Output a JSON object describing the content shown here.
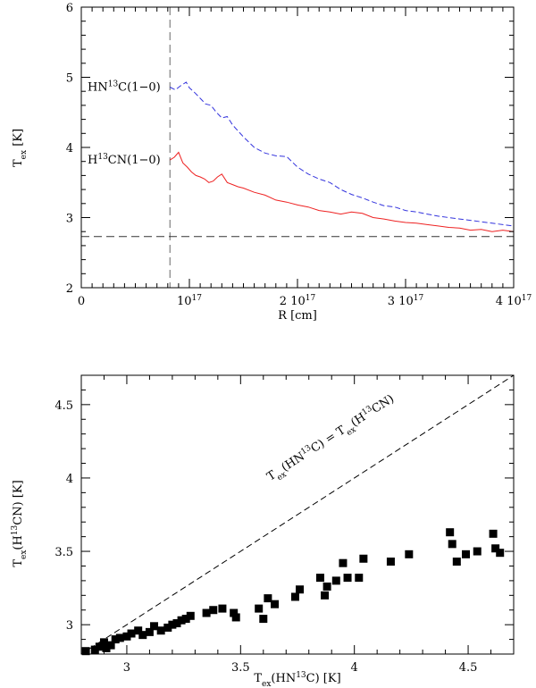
{
  "chart_data": [
    {
      "type": "line",
      "title": "",
      "xlabel": "R [cm]",
      "ylabel": "T_ex [K]",
      "xlim": [
        0,
        4e+17
      ],
      "ylim": [
        2,
        6
      ],
      "x_ticks": [
        {
          "value": 1e+17,
          "label": "10",
          "exp": "17"
        },
        {
          "value": 2e+17,
          "label": "2 10",
          "exp": "17"
        },
        {
          "value": 3e+17,
          "label": "3 10",
          "exp": "17"
        },
        {
          "value": 4e+17,
          "label": "4 10",
          "exp": "17"
        }
      ],
      "x_zero_label": "0",
      "y_ticks": [
        2,
        3,
        4,
        5,
        6
      ],
      "reference_lines": {
        "vertical_x": 8.2e+16,
        "horizontal_y": 2.73
      },
      "series": [
        {
          "name": "HN13C(1-0)",
          "label_parts": [
            "HN",
            "13",
            "C(1−0)"
          ],
          "color": "#3333dd",
          "style": "dashed",
          "x": [
            8.2e+16,
            8.7e+16,
            9.2e+16,
            9.7e+16,
            1e+17,
            1.05e+17,
            1.1e+17,
            1.15e+17,
            1.2e+17,
            1.25e+17,
            1.3e+17,
            1.35e+17,
            1.4e+17,
            1.5e+17,
            1.6e+17,
            1.7e+17,
            1.8e+17,
            1.9e+17,
            2e+17,
            2.1e+17,
            2.2e+17,
            2.3e+17,
            2.4e+17,
            2.5e+17,
            2.6e+17,
            2.7e+17,
            2.8e+17,
            2.9e+17,
            3e+17,
            3.1e+17,
            3.2e+17,
            3.3e+17,
            3.4e+17,
            3.5e+17,
            3.6e+17,
            3.7e+17,
            3.8e+17,
            3.9e+17,
            4e+17
          ],
          "y": [
            4.86,
            4.82,
            4.88,
            4.93,
            4.85,
            4.78,
            4.7,
            4.62,
            4.6,
            4.5,
            4.42,
            4.44,
            4.32,
            4.15,
            4.0,
            3.92,
            3.88,
            3.87,
            3.72,
            3.62,
            3.55,
            3.5,
            3.4,
            3.33,
            3.28,
            3.22,
            3.17,
            3.15,
            3.1,
            3.08,
            3.05,
            3.02,
            3.0,
            2.98,
            2.96,
            2.94,
            2.92,
            2.9,
            2.88
          ]
        },
        {
          "name": "H13CN(1-0)",
          "label_parts": [
            "H",
            "13",
            "CN(1−0)"
          ],
          "color": "#ee2222",
          "style": "solid",
          "x": [
            8.2e+16,
            8.6e+16,
            9e+16,
            9.4e+16,
            9.8e+16,
            1.02e+17,
            1.06e+17,
            1.1e+17,
            1.14e+17,
            1.18e+17,
            1.22e+17,
            1.26e+17,
            1.3e+17,
            1.35e+17,
            1.4e+17,
            1.45e+17,
            1.5e+17,
            1.6e+17,
            1.7e+17,
            1.8e+17,
            1.9e+17,
            2e+17,
            2.1e+17,
            2.2e+17,
            2.3e+17,
            2.4e+17,
            2.5e+17,
            2.6e+17,
            2.7e+17,
            2.8e+17,
            2.9e+17,
            3e+17,
            3.1e+17,
            3.2e+17,
            3.3e+17,
            3.4e+17,
            3.5e+17,
            3.6e+17,
            3.7e+17,
            3.8e+17,
            3.9e+17,
            4e+17
          ],
          "y": [
            3.82,
            3.86,
            3.93,
            3.78,
            3.72,
            3.65,
            3.6,
            3.58,
            3.55,
            3.5,
            3.52,
            3.58,
            3.62,
            3.5,
            3.47,
            3.44,
            3.42,
            3.36,
            3.32,
            3.25,
            3.22,
            3.18,
            3.15,
            3.1,
            3.08,
            3.05,
            3.08,
            3.06,
            3.0,
            2.98,
            2.95,
            2.93,
            2.92,
            2.9,
            2.88,
            2.86,
            2.85,
            2.82,
            2.83,
            2.8,
            2.82,
            2.8
          ]
        }
      ]
    },
    {
      "type": "scatter",
      "title": "",
      "xlabel_parts": [
        "T",
        "ex",
        "(HN",
        "13",
        "C)  [K]"
      ],
      "ylabel_parts": [
        "T",
        "ex",
        "(H",
        "13",
        "CN)  [K]"
      ],
      "xlim": [
        2.8,
        4.7
      ],
      "ylim": [
        2.8,
        4.7
      ],
      "x_ticks": [
        3,
        3.5,
        4,
        4.5
      ],
      "y_ticks": [
        3,
        3.5,
        4,
        4.5
      ],
      "equality_line_label_parts": [
        "T",
        "ex",
        "(HN",
        "13",
        "C) = T",
        "ex",
        "(H",
        "13",
        "CN)"
      ],
      "x": [
        2.82,
        2.86,
        2.88,
        2.9,
        2.91,
        2.93,
        2.95,
        2.97,
        3.0,
        3.02,
        3.05,
        3.07,
        3.1,
        3.12,
        3.15,
        3.18,
        3.2,
        3.22,
        3.24,
        3.26,
        3.28,
        3.35,
        3.38,
        3.42,
        3.47,
        3.48,
        3.58,
        3.6,
        3.62,
        3.65,
        3.74,
        3.76,
        3.85,
        3.87,
        3.88,
        3.92,
        3.95,
        3.97,
        4.02,
        4.04,
        4.16,
        4.24,
        4.42,
        4.43,
        4.45,
        4.49,
        4.54,
        4.61,
        4.62,
        4.64
      ],
      "y": [
        2.82,
        2.83,
        2.85,
        2.88,
        2.84,
        2.86,
        2.9,
        2.91,
        2.92,
        2.94,
        2.96,
        2.93,
        2.95,
        2.99,
        2.96,
        2.98,
        3.0,
        3.01,
        3.03,
        3.04,
        3.06,
        3.08,
        3.1,
        3.11,
        3.08,
        3.05,
        3.11,
        3.04,
        3.18,
        3.14,
        3.19,
        3.24,
        3.32,
        3.2,
        3.26,
        3.3,
        3.42,
        3.32,
        3.32,
        3.45,
        3.43,
        3.48,
        3.63,
        3.55,
        3.43,
        3.48,
        3.5,
        3.62,
        3.52,
        3.49
      ]
    }
  ]
}
